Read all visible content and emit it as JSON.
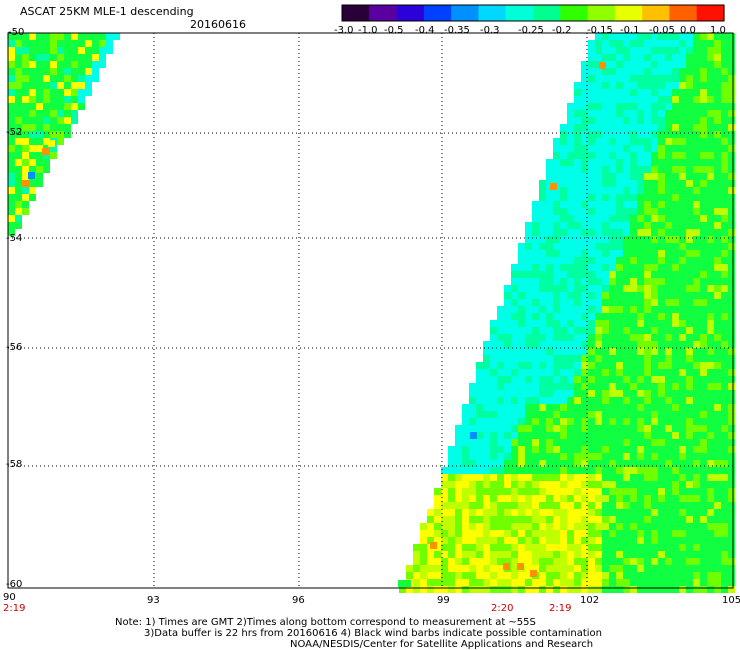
{
  "header": {
    "title": "ASCAT 25KM MLE-1 descending",
    "date": "20160616"
  },
  "colorbar": {
    "tick_labels": [
      "-3.0",
      "-1.0",
      "-0.5",
      "-0.4",
      "-0.35",
      "-0.3",
      "-0.25",
      "-0.2",
      "-0.15",
      "-0.1",
      "-0.05",
      "0.0",
      "1.0"
    ],
    "colors": [
      "#2a0038",
      "#5a00a0",
      "#2c00d8",
      "#0040ff",
      "#0090ff",
      "#00d8ff",
      "#00ffd8",
      "#00ff90",
      "#30ff00",
      "#90ff00",
      "#e8ff00",
      "#ffc000",
      "#ff6000",
      "#ff1000"
    ]
  },
  "map": {
    "lat_labels": [
      "-50",
      "-52",
      "-54",
      "-56",
      "-58",
      "-60"
    ],
    "lon_labels": [
      "90",
      "93",
      "96",
      "99",
      "102",
      "105"
    ],
    "time_labels": [
      "2:19",
      "2:20",
      "2:19"
    ],
    "swath_colors": {
      "cyan": "#00ffe8",
      "cyan_green": "#00ffa0",
      "green": "#10ff40",
      "light_green": "#70ff00",
      "yellow_green": "#c0ff00",
      "yellow": "#ffff00",
      "orange": "#ff9000",
      "blue": "#0090ff"
    }
  },
  "notes": {
    "line1": "Note: 1) Times are GMT 2)Times along bottom correspond to measurement at ~55S",
    "line2": "3)Data buffer is 22 hrs from 20160616 4) Black wind barbs indicate possible contamination",
    "line3": "NOAA/NESDIS/Center for Satellite Applications and Research"
  }
}
